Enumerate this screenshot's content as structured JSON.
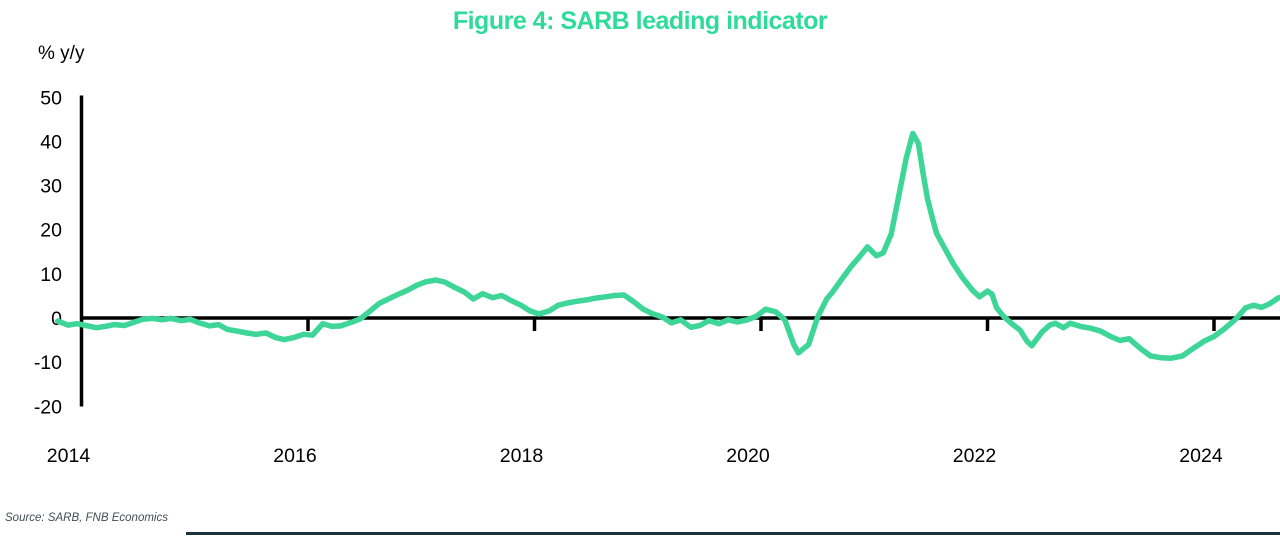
{
  "figure": {
    "title": "Figure 4: SARB leading indicator",
    "y_axis_unit_label": "% y/y",
    "source_note": "Source: SARB, FNB Economics"
  },
  "colors": {
    "title_green": "#2EDB9A",
    "line_green": "#3DD598",
    "axis_black": "#000000",
    "source_gray": "#3F4E52",
    "bottom_rule_dark": "#1C333D"
  },
  "chart_data": {
    "type": "line",
    "title": "Figure 4: SARB leading indicator",
    "xlabel": "",
    "ylabel": "% y/y",
    "ylim": [
      -20,
      50
    ],
    "xlim_years": [
      2013.75,
      2024.6
    ],
    "y_ticks": [
      50,
      40,
      30,
      20,
      10,
      0,
      -10,
      -20
    ],
    "x_ticks": [
      2014,
      2016,
      2018,
      2020,
      2022,
      2024
    ],
    "grid": false,
    "legend_position": "none",
    "series": [
      {
        "name": "SARB leading indicator, % y/y",
        "points": [
          [
            2013.79,
            -0.7
          ],
          [
            2013.88,
            -1.6
          ],
          [
            2013.96,
            -1.3
          ],
          [
            2014.04,
            -1.7
          ],
          [
            2014.13,
            -2.2
          ],
          [
            2014.21,
            -1.9
          ],
          [
            2014.29,
            -1.5
          ],
          [
            2014.38,
            -1.7
          ],
          [
            2014.46,
            -1.0
          ],
          [
            2014.54,
            -0.3
          ],
          [
            2014.63,
            -0.1
          ],
          [
            2014.71,
            -0.4
          ],
          [
            2014.79,
            -0.1
          ],
          [
            2014.88,
            -0.6
          ],
          [
            2014.96,
            -0.3
          ],
          [
            2015.04,
            -1.1
          ],
          [
            2015.13,
            -1.8
          ],
          [
            2015.21,
            -1.5
          ],
          [
            2015.29,
            -2.6
          ],
          [
            2015.38,
            -3.0
          ],
          [
            2015.46,
            -3.4
          ],
          [
            2015.54,
            -3.7
          ],
          [
            2015.63,
            -3.4
          ],
          [
            2015.71,
            -4.4
          ],
          [
            2015.79,
            -4.9
          ],
          [
            2015.88,
            -4.4
          ],
          [
            2015.96,
            -3.7
          ],
          [
            2016.04,
            -3.9
          ],
          [
            2016.13,
            -1.3
          ],
          [
            2016.21,
            -1.9
          ],
          [
            2016.29,
            -1.8
          ],
          [
            2016.38,
            -1.0
          ],
          [
            2016.46,
            -0.2
          ],
          [
            2016.54,
            1.4
          ],
          [
            2016.63,
            3.3
          ],
          [
            2016.71,
            4.3
          ],
          [
            2016.79,
            5.3
          ],
          [
            2016.88,
            6.3
          ],
          [
            2016.96,
            7.4
          ],
          [
            2017.04,
            8.2
          ],
          [
            2017.13,
            8.6
          ],
          [
            2017.21,
            8.1
          ],
          [
            2017.29,
            7.0
          ],
          [
            2017.38,
            5.9
          ],
          [
            2017.46,
            4.3
          ],
          [
            2017.54,
            5.5
          ],
          [
            2017.63,
            4.6
          ],
          [
            2017.71,
            5.1
          ],
          [
            2017.79,
            4.0
          ],
          [
            2017.88,
            2.9
          ],
          [
            2017.96,
            1.6
          ],
          [
            2018.04,
            0.9
          ],
          [
            2018.13,
            1.6
          ],
          [
            2018.21,
            2.9
          ],
          [
            2018.29,
            3.4
          ],
          [
            2018.38,
            3.8
          ],
          [
            2018.46,
            4.1
          ],
          [
            2018.54,
            4.5
          ],
          [
            2018.63,
            4.8
          ],
          [
            2018.71,
            5.1
          ],
          [
            2018.79,
            5.2
          ],
          [
            2018.88,
            3.6
          ],
          [
            2018.96,
            2.0
          ],
          [
            2019.04,
            1.0
          ],
          [
            2019.13,
            0.2
          ],
          [
            2019.21,
            -1.1
          ],
          [
            2019.29,
            -0.4
          ],
          [
            2019.38,
            -2.1
          ],
          [
            2019.46,
            -1.7
          ],
          [
            2019.54,
            -0.6
          ],
          [
            2019.63,
            -1.3
          ],
          [
            2019.71,
            -0.4
          ],
          [
            2019.79,
            -0.9
          ],
          [
            2019.88,
            -0.4
          ],
          [
            2019.96,
            0.4
          ],
          [
            2020.04,
            2.0
          ],
          [
            2020.13,
            1.4
          ],
          [
            2020.21,
            -0.4
          ],
          [
            2020.29,
            -6.0
          ],
          [
            2020.33,
            -7.9
          ],
          [
            2020.42,
            -6.0
          ],
          [
            2020.5,
            0.2
          ],
          [
            2020.58,
            4.3
          ],
          [
            2020.63,
            5.8
          ],
          [
            2020.71,
            8.7
          ],
          [
            2020.79,
            11.5
          ],
          [
            2020.88,
            14.2
          ],
          [
            2020.94,
            16.1
          ],
          [
            2021.02,
            14.1
          ],
          [
            2021.08,
            14.8
          ],
          [
            2021.15,
            19.0
          ],
          [
            2021.21,
            26.8
          ],
          [
            2021.28,
            36.0
          ],
          [
            2021.34,
            41.8
          ],
          [
            2021.39,
            39.5
          ],
          [
            2021.43,
            33.0
          ],
          [
            2021.47,
            27.0
          ],
          [
            2021.52,
            22.0
          ],
          [
            2021.55,
            19.2
          ],
          [
            2021.63,
            15.4
          ],
          [
            2021.7,
            12.2
          ],
          [
            2021.78,
            9.1
          ],
          [
            2021.87,
            6.2
          ],
          [
            2021.93,
            4.8
          ],
          [
            2022.0,
            6.1
          ],
          [
            2022.04,
            5.4
          ],
          [
            2022.08,
            2.3
          ],
          [
            2022.14,
            0.4
          ],
          [
            2022.21,
            -1.2
          ],
          [
            2022.29,
            -2.8
          ],
          [
            2022.35,
            -5.3
          ],
          [
            2022.39,
            -6.3
          ],
          [
            2022.44,
            -4.6
          ],
          [
            2022.48,
            -3.2
          ],
          [
            2022.55,
            -1.6
          ],
          [
            2022.6,
            -1.2
          ],
          [
            2022.67,
            -2.2
          ],
          [
            2022.73,
            -1.2
          ],
          [
            2022.82,
            -1.9
          ],
          [
            2022.91,
            -2.3
          ],
          [
            2023.0,
            -3.0
          ],
          [
            2023.08,
            -4.1
          ],
          [
            2023.17,
            -5.1
          ],
          [
            2023.25,
            -4.7
          ],
          [
            2023.35,
            -6.9
          ],
          [
            2023.44,
            -8.6
          ],
          [
            2023.53,
            -9.0
          ],
          [
            2023.62,
            -9.1
          ],
          [
            2023.72,
            -8.6
          ],
          [
            2023.81,
            -7.0
          ],
          [
            2023.91,
            -5.3
          ],
          [
            2024.0,
            -4.2
          ],
          [
            2024.09,
            -2.5
          ],
          [
            2024.19,
            -0.3
          ],
          [
            2024.28,
            2.3
          ],
          [
            2024.35,
            2.9
          ],
          [
            2024.42,
            2.4
          ],
          [
            2024.49,
            3.2
          ],
          [
            2024.57,
            4.6
          ]
        ]
      }
    ]
  }
}
